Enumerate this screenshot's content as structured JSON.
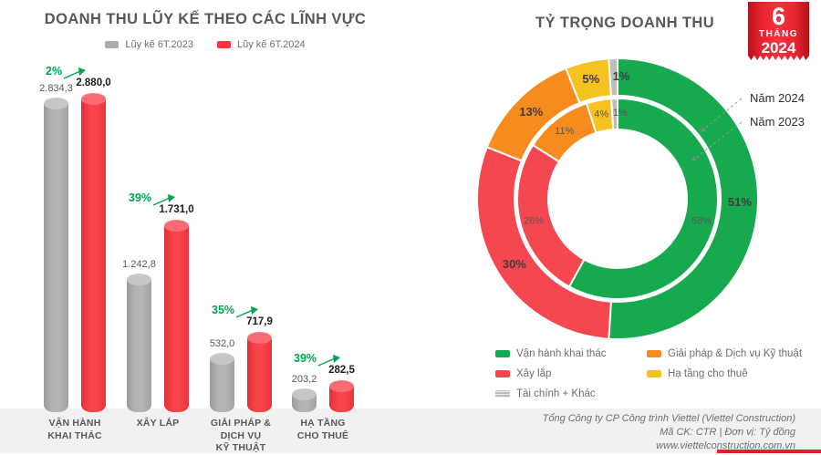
{
  "left_chart": {
    "title": "DOANH THU LŨY KẾ THEO CÁC LĨNH VỰC",
    "legend": [
      {
        "label": "Lũy kế 6T.2023",
        "color": "#adadad"
      },
      {
        "label": "Lũy kế 6T.2024",
        "color": "#f9353f"
      }
    ]
  },
  "right_chart": {
    "title": "TỶ TRỌNG DOANH THU",
    "ring_labels": {
      "outer": "Năm 2024",
      "inner": "Năm 2023"
    },
    "legend": [
      {
        "label": "Vận hành khai thác",
        "color": "#16a94e",
        "striped": false
      },
      {
        "label": "Giải pháp & Dịch vụ Kỹ thuật",
        "color": "#f68b1e",
        "striped": false
      },
      {
        "label": "Xây lắp",
        "color": "#f4474f",
        "striped": false
      },
      {
        "label": "Hạ tầng cho thuê",
        "color": "#f6c21f",
        "striped": false
      },
      {
        "label": "Tài chính + Khác",
        "color": "#bdbdbd",
        "striped": true
      }
    ]
  },
  "badge": {
    "month": "6",
    "thang": "THÁNG",
    "year": "2024"
  },
  "footer": {
    "line1": "Tổng Công ty CP Công trình Viettel (Viettel Construction)",
    "line2": "Mã CK: CTR  |  Đơn vị: Tỷ đồng",
    "line3": "www.viettelconstruction.com.vn"
  },
  "colors": {
    "bar_gray": "#adadad",
    "bar_gray_cap": "#c9c9c9",
    "bar_red": "#f9353f",
    "bar_red_cap": "#fc7078",
    "growth_green": "#00a44e",
    "title_gray": "#57585b",
    "band_gray": "#f1f1ef",
    "badge_red": "#e8232e"
  },
  "chart_data": [
    {
      "type": "bar",
      "title": "DOANH THU LŨY KẾ THEO CÁC LĨNH VỰC",
      "unit": "Tỷ đồng",
      "categories": [
        "VẬN HÀNH\nKHAI THÁC",
        "XÂY LẮP",
        "GIẢI PHÁP &\nDỊCH VỤ\nKỸ THUẬT",
        "HẠ TẦNG\nCHO THUÊ"
      ],
      "series": [
        {
          "name": "Lũy kế 6T.2023",
          "values": [
            2834.3,
            1242.8,
            532.0,
            203.2
          ],
          "color": "#adadad",
          "cap": "#c9c9c9"
        },
        {
          "name": "Lũy kế 6T.2024",
          "values": [
            2880.0,
            1731.0,
            717.9,
            282.5
          ],
          "color": "#f9353f",
          "cap": "#fc7078"
        }
      ],
      "value_labels": [
        [
          "2.834,3",
          "1.242,8",
          "532,0",
          "203,2"
        ],
        [
          "2.880,0",
          "1.731,0",
          "717,9",
          "282,5"
        ]
      ],
      "growth_labels": [
        "2%",
        "39%",
        "35%",
        "39%"
      ],
      "ylim": [
        0,
        3000
      ],
      "grid": false,
      "legend_position": "top"
    },
    {
      "type": "pie",
      "subtype": "double-donut",
      "title": "TỶ TRỌNG DOANH THU",
      "segments": [
        "Vận hành khai thác",
        "Xây lắp",
        "Giải pháp & Dịch vụ Kỹ thuật",
        "Hạ tầng cho thuê",
        "Tài chính + Khác"
      ],
      "colors": [
        "#16a94e",
        "#f4474f",
        "#f68b1e",
        "#f6c21f",
        "#bdbdbd"
      ],
      "rings": [
        {
          "name": "Năm 2024",
          "position": "outer",
          "values": [
            51,
            30,
            13,
            5,
            1
          ],
          "labels": [
            "51%",
            "30%",
            "13%",
            "5%",
            "1%"
          ]
        },
        {
          "name": "Năm 2023",
          "position": "inner",
          "values": [
            58,
            26,
            11,
            4,
            1
          ],
          "labels": [
            "58%",
            "26%",
            "11%",
            "4%",
            "1%"
          ]
        }
      ],
      "legend_position": "bottom"
    }
  ]
}
